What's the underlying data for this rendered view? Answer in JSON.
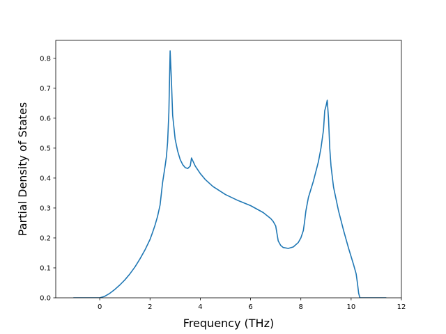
{
  "chart_data": {
    "type": "line",
    "title": "",
    "xlabel": "Frequency (THz)",
    "ylabel": "Partial Density of States",
    "xlim": [
      -1.75,
      12.0
    ],
    "ylim": [
      0.0,
      0.86
    ],
    "xticks": [
      "0",
      "2",
      "4",
      "6",
      "8",
      "10",
      "12"
    ],
    "xtick_values": [
      0,
      2,
      4,
      6,
      8,
      10,
      12
    ],
    "yticks": [
      "0.0",
      "0.1",
      "0.2",
      "0.3",
      "0.4",
      "0.5",
      "0.6",
      "0.7",
      "0.8"
    ],
    "ytick_values": [
      0.0,
      0.1,
      0.2,
      0.3,
      0.4,
      0.5,
      0.6,
      0.7,
      0.8
    ],
    "grid": false,
    "legend": "none",
    "series": [
      {
        "color": "#1f77b4",
        "x": [
          -1.05,
          -0.5,
          0.0,
          0.2,
          0.4,
          0.6,
          0.8,
          1.0,
          1.2,
          1.4,
          1.6,
          1.8,
          2.0,
          2.1,
          2.2,
          2.3,
          2.4,
          2.5,
          2.6,
          2.65,
          2.7,
          2.75,
          2.8,
          2.85,
          2.9,
          3.0,
          3.1,
          3.2,
          3.3,
          3.4,
          3.5,
          3.6,
          3.65,
          3.7,
          3.8,
          4.0,
          4.2,
          4.5,
          5.0,
          5.5,
          6.0,
          6.5,
          6.8,
          6.9,
          7.0,
          7.05,
          7.1,
          7.2,
          7.3,
          7.5,
          7.7,
          7.9,
          8.0,
          8.1,
          8.15,
          8.2,
          8.3,
          8.5,
          8.7,
          8.8,
          8.9,
          8.95,
          9.0,
          9.05,
          9.1,
          9.15,
          9.2,
          9.3,
          9.5,
          9.7,
          9.9,
          10.1,
          10.2,
          10.25,
          10.3,
          10.35,
          10.4,
          11.4
        ],
        "y": [
          0.0,
          0.0,
          0.0,
          0.005,
          0.015,
          0.028,
          0.043,
          0.06,
          0.08,
          0.103,
          0.13,
          0.16,
          0.195,
          0.218,
          0.243,
          0.272,
          0.31,
          0.385,
          0.44,
          0.47,
          0.52,
          0.62,
          0.825,
          0.73,
          0.61,
          0.53,
          0.49,
          0.462,
          0.445,
          0.435,
          0.432,
          0.44,
          0.467,
          0.458,
          0.44,
          0.415,
          0.395,
          0.372,
          0.345,
          0.325,
          0.308,
          0.285,
          0.265,
          0.255,
          0.24,
          0.215,
          0.19,
          0.175,
          0.168,
          0.165,
          0.17,
          0.185,
          0.2,
          0.225,
          0.255,
          0.29,
          0.335,
          0.39,
          0.455,
          0.5,
          0.56,
          0.625,
          0.64,
          0.66,
          0.6,
          0.5,
          0.44,
          0.37,
          0.29,
          0.225,
          0.165,
          0.11,
          0.08,
          0.05,
          0.015,
          0.0,
          0.0,
          0.0
        ]
      }
    ]
  }
}
